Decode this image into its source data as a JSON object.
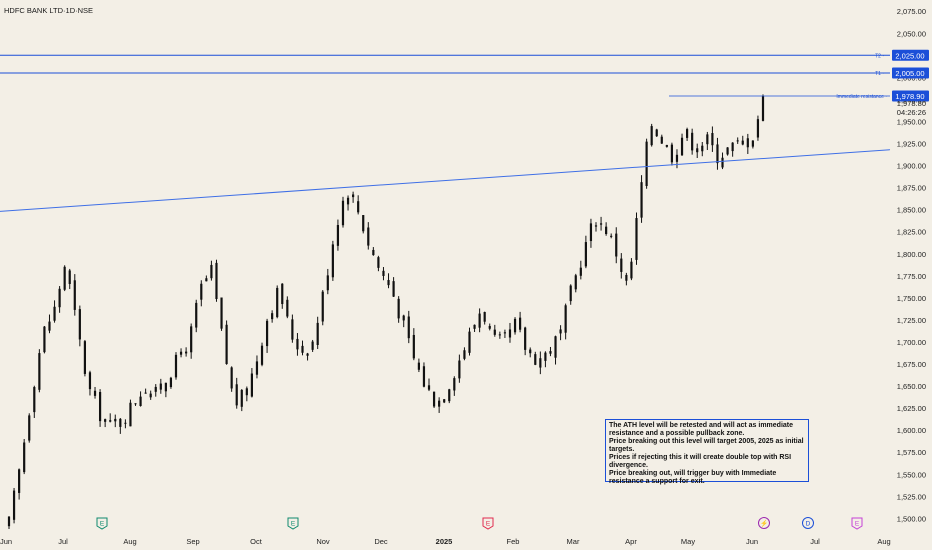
{
  "header": {
    "symbol": "HDFC BANK LTD",
    "interval": "1D",
    "exchange": "NSE",
    "separator": " · "
  },
  "annotation": {
    "lines": [
      "The ATH level will be retested and will act as immediate resistance and a possible pullback zone.",
      "Price breaking out this level will target 2005, 2025 as initial targets.",
      "Prices if rejecting this it will create double top with RSI divergence.",
      "Price breaking out, will trigger buy with Immediate resistance a support for exit."
    ]
  },
  "chart_data": {
    "type": "candlestick",
    "title": "",
    "x_axis": {
      "tick_labels": [
        "Jun",
        "Jul",
        "Aug",
        "Sep",
        "Oct",
        "Nov",
        "Dec",
        "2025",
        "Feb",
        "Mar",
        "Apr",
        "May",
        "Jun",
        "Jul",
        "Aug"
      ],
      "bold_labels": [
        "2025"
      ]
    },
    "y_axis": {
      "range": [
        1494,
        2082
      ],
      "tick_labels": [
        "2,075.00",
        "2,050.00",
        "2,025.00",
        "2,000.00",
        "1,975.00",
        "1,950.00",
        "1,925.00",
        "1,900.00",
        "1,875.00",
        "1,850.00",
        "1,825.00",
        "1,800.00",
        "1,775.00",
        "1,750.00",
        "1,725.00",
        "1,700.00",
        "1,675.00",
        "1,650.00",
        "1,625.00",
        "1,600.00",
        "1,575.00",
        "1,550.00",
        "1,525.00",
        "1,500.00"
      ],
      "tick_values": [
        2075,
        2050,
        2025,
        2000,
        1975,
        1950,
        1925,
        1900,
        1875,
        1850,
        1825,
        1800,
        1775,
        1750,
        1725,
        1700,
        1675,
        1650,
        1625,
        1600,
        1575,
        1550,
        1525,
        1500
      ]
    },
    "price_path_closes": [
      1495,
      1560,
      1640,
      1710,
      1735,
      1790,
      1720,
      1650,
      1620,
      1605,
      1610,
      1630,
      1650,
      1640,
      1660,
      1680,
      1700,
      1760,
      1780,
      1700,
      1630,
      1640,
      1680,
      1730,
      1760,
      1710,
      1690,
      1700,
      1760,
      1830,
      1875,
      1850,
      1810,
      1780,
      1760,
      1720,
      1680,
      1650,
      1630,
      1650,
      1680,
      1710,
      1740,
      1700,
      1700,
      1720,
      1690,
      1680,
      1690,
      1710,
      1760,
      1800,
      1840,
      1830,
      1800,
      1760,
      1860,
      1950,
      1930,
      1910,
      1940,
      1920,
      1930,
      1910,
      1920,
      1925,
      1930,
      1975
    ],
    "horizontal_levels": [
      {
        "label": "T2",
        "price_label": "2,025.00",
        "value": 2025
      },
      {
        "label": "T1",
        "price_label": "2,005.00",
        "value": 2005
      },
      {
        "label": "Immediate resistance",
        "price_label": "1,978.90",
        "value": 1978.9
      }
    ],
    "last_price": {
      "value_label": "1,978.80",
      "countdown": "04:26:26"
    },
    "trendline": {
      "from": [
        0,
        1848
      ],
      "to": [
        1,
        1918
      ]
    },
    "event_markers": [
      {
        "symbol": "E",
        "color": "#0f8a6e"
      },
      {
        "symbol": "E",
        "color": "#0f8a6e"
      },
      {
        "symbol": "E",
        "color": "#e0294d"
      },
      {
        "symbol": "⚡",
        "color": "#9c27b0"
      },
      {
        "symbol": "D",
        "color": "#1b4fd8"
      },
      {
        "symbol": "E",
        "color": "#c542d6"
      }
    ],
    "colors": {
      "candle": "#111111",
      "levels": "#1b4fd8",
      "trendline": "#3f6fe6",
      "label_bg": "#1b4fd8",
      "background": "#f3efe6"
    },
    "grid": false
  }
}
